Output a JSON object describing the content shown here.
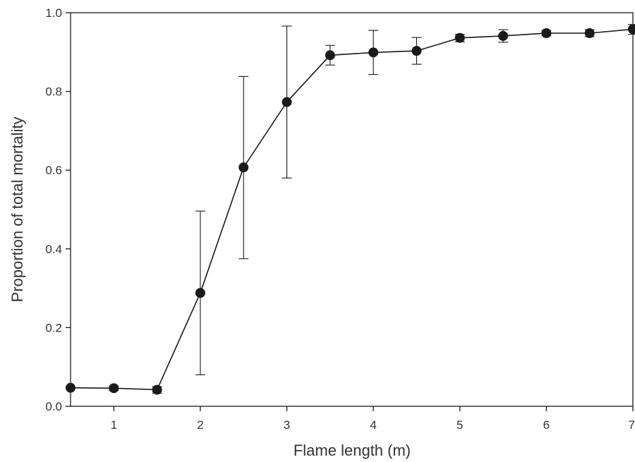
{
  "chart_data": {
    "type": "line",
    "title": "",
    "xlabel": "Flame length (m)",
    "ylabel": "Proportion of total mortality",
    "xlim": [
      0.5,
      7
    ],
    "ylim": [
      0,
      1.0
    ],
    "x_ticks": [
      1,
      2,
      3,
      4,
      5,
      6,
      7
    ],
    "x_tick_labels": [
      "1",
      "2",
      "3",
      "4",
      "5",
      "6",
      "7"
    ],
    "y_ticks": [
      0,
      0.2,
      0.4,
      0.6,
      0.8,
      1.0
    ],
    "y_tick_labels": [
      "0.0",
      "0.2",
      "0.4",
      "0.6",
      "0.8",
      "1.0"
    ],
    "grid": false,
    "legend": "none",
    "series": [
      {
        "marker": "circle",
        "color": "#1a1a1a",
        "points": [
          {
            "x": 0.5,
            "y": 0.047,
            "err_low": 0.047,
            "err_high": 0.047
          },
          {
            "x": 1.0,
            "y": 0.046,
            "err_low": 0.04,
            "err_high": 0.052
          },
          {
            "x": 1.5,
            "y": 0.042,
            "err_low": 0.033,
            "err_high": 0.05
          },
          {
            "x": 2.0,
            "y": 0.288,
            "err_low": 0.08,
            "err_high": 0.496
          },
          {
            "x": 2.5,
            "y": 0.607,
            "err_low": 0.375,
            "err_high": 0.838
          },
          {
            "x": 3.0,
            "y": 0.773,
            "err_low": 0.58,
            "err_high": 0.966
          },
          {
            "x": 3.5,
            "y": 0.892,
            "err_low": 0.867,
            "err_high": 0.917
          },
          {
            "x": 4.0,
            "y": 0.899,
            "err_low": 0.843,
            "err_high": 0.955
          },
          {
            "x": 4.5,
            "y": 0.903,
            "err_low": 0.869,
            "err_high": 0.937
          },
          {
            "x": 5.0,
            "y": 0.936,
            "err_low": 0.926,
            "err_high": 0.945
          },
          {
            "x": 5.5,
            "y": 0.941,
            "err_low": 0.925,
            "err_high": 0.957
          },
          {
            "x": 6.0,
            "y": 0.948,
            "err_low": 0.941,
            "err_high": 0.955
          },
          {
            "x": 6.5,
            "y": 0.948,
            "err_low": 0.939,
            "err_high": 0.957
          },
          {
            "x": 7.0,
            "y": 0.958,
            "err_low": 0.945,
            "err_high": 0.97
          }
        ]
      }
    ]
  }
}
